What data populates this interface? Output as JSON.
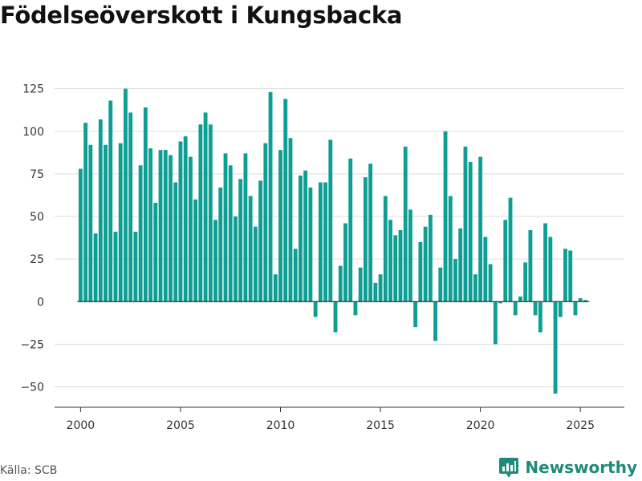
{
  "title": "Födelseöverskott i Kungsbacka",
  "source": "Källa: SCB",
  "brand": "Newsworthy",
  "colors": {
    "bar": "#0e9f94",
    "grid": "#dddddd",
    "axis": "#333333",
    "brand": "#1f8a7a"
  },
  "chart_data": {
    "type": "bar",
    "title": "Födelseöverskott i Kungsbacka",
    "xlabel": "",
    "ylabel": "",
    "x_start": 2000,
    "periods_per_year": 4,
    "values": [
      78,
      105,
      92,
      40,
      107,
      92,
      118,
      41,
      93,
      125,
      111,
      41,
      80,
      114,
      90,
      58,
      89,
      89,
      86,
      70,
      94,
      97,
      85,
      60,
      104,
      111,
      104,
      48,
      67,
      87,
      80,
      50,
      72,
      87,
      62,
      44,
      71,
      93,
      123,
      16,
      89,
      119,
      96,
      31,
      74,
      77,
      67,
      -9,
      70,
      70,
      95,
      -18,
      21,
      46,
      84,
      -8,
      20,
      73,
      81,
      11,
      16,
      62,
      48,
      39,
      42,
      91,
      54,
      -15,
      35,
      44,
      51,
      -23,
      20,
      100,
      62,
      25,
      43,
      91,
      82,
      16,
      85,
      38,
      22,
      -25,
      -1,
      48,
      61,
      -8,
      3,
      23,
      42,
      -8,
      -18,
      46,
      38,
      -54,
      -9,
      31,
      30,
      -8,
      2,
      1
    ],
    "xlim": [
      1998.7,
      2027.2
    ],
    "ylim": [
      -62,
      130
    ],
    "yticks": [
      -50,
      -25,
      0,
      25,
      50,
      75,
      100,
      125
    ],
    "xticks": [
      2000,
      2005,
      2010,
      2015,
      2020,
      2025
    ],
    "grid": true,
    "legend": "none"
  }
}
